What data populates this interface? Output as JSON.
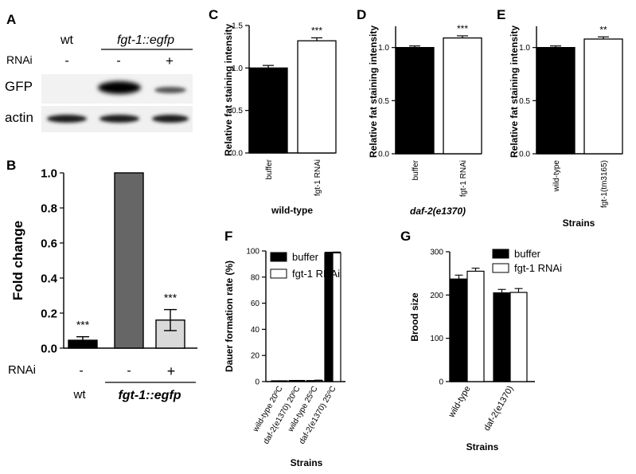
{
  "panel_letters": {
    "A": "A",
    "B": "B",
    "C": "C",
    "D": "D",
    "E": "E",
    "F": "F",
    "G": "G"
  },
  "blot": {
    "col_labels": [
      "wt",
      "fgt-1::egfp"
    ],
    "rnai_label": "RNAi",
    "rnai_marks": [
      "-",
      "-",
      "+"
    ],
    "row_labels": [
      "GFP",
      "actin"
    ]
  },
  "chart_data": [
    {
      "panel": "B",
      "type": "bar",
      "ylabel": "Fold change",
      "ylim": [
        0,
        1.0
      ],
      "yticks": [
        "0.0",
        "0.2",
        "0.4",
        "0.6",
        "0.8",
        "1.0"
      ],
      "values": [
        0.045,
        1.0,
        0.16
      ],
      "errors": [
        0.02,
        0,
        0.06
      ],
      "stars": [
        "***",
        "",
        "***"
      ],
      "colors": [
        "#000000",
        "#666666",
        "#d9d9d9"
      ],
      "rnai_label": "RNAi",
      "rnai_marks": [
        "-",
        "-",
        "+"
      ],
      "group_labels": [
        "wt",
        "fgt-1::egfp"
      ]
    },
    {
      "panel": "C",
      "type": "bar",
      "ylabel": "Relative fat staining intensity",
      "ylim": [
        0,
        1.5
      ],
      "yticks": [
        "0.0",
        "0.5",
        "1.0",
        "1.5"
      ],
      "categories": [
        "buffer",
        "fgt-1 RNAi"
      ],
      "values": [
        1.0,
        1.32
      ],
      "errors": [
        0.03,
        0.035
      ],
      "stars": [
        "",
        "***"
      ],
      "colors": [
        "#000000",
        "#ffffff"
      ],
      "xlabel": "wild-type"
    },
    {
      "panel": "D",
      "type": "bar",
      "ylabel": "Relative fat staining intensity",
      "ylim": [
        0,
        1.2
      ],
      "yticks": [
        "0.0",
        "0.5",
        "1.0"
      ],
      "categories": [
        "buffer",
        "fgt-1 RNAi"
      ],
      "values": [
        1.0,
        1.09
      ],
      "errors": [
        0.015,
        0.02
      ],
      "stars": [
        "",
        "***"
      ],
      "colors": [
        "#000000",
        "#ffffff"
      ],
      "xlabel": "daf-2(e1370)"
    },
    {
      "panel": "E",
      "type": "bar",
      "ylabel": "Relative fat staining intensity",
      "ylim": [
        0,
        1.2
      ],
      "yticks": [
        "0.0",
        "0.5",
        "1.0"
      ],
      "categories": [
        "wild-type",
        "fgt-1(tm3165)"
      ],
      "values": [
        1.0,
        1.08
      ],
      "errors": [
        0.015,
        0.02
      ],
      "stars": [
        "",
        "**"
      ],
      "colors": [
        "#000000",
        "#ffffff"
      ],
      "xlabel": "Strains"
    },
    {
      "panel": "F",
      "type": "bar",
      "ylabel": "Dauer formation rate (%)",
      "ylim": [
        0,
        100
      ],
      "yticks": [
        "0",
        "20",
        "40",
        "60",
        "80",
        "100"
      ],
      "categories": [
        "wild-type 20ºC",
        "daf-2(e1370) 20ºC",
        "wild-type 25ºC",
        "daf-2(e1370) 25ºC"
      ],
      "series": [
        {
          "name": "buffer",
          "values": [
            0.3,
            0.6,
            0.5,
            98.5
          ],
          "errors": [
            0.2,
            0.3,
            0.3,
            0.5
          ],
          "color": "#000000"
        },
        {
          "name": "fgt-1 RNAi",
          "values": [
            0.3,
            0.6,
            0.8,
            98.5
          ],
          "errors": [
            0.2,
            0.3,
            0.3,
            0.7
          ],
          "color": "#ffffff"
        }
      ],
      "xlabel": "Strains",
      "legend": "top-left"
    },
    {
      "panel": "G",
      "type": "bar",
      "ylabel": "Brood size",
      "ylim": [
        0,
        300
      ],
      "yticks": [
        "0",
        "100",
        "200",
        "300"
      ],
      "categories": [
        "wild-type",
        "daf-2(e1370)"
      ],
      "series": [
        {
          "name": "buffer",
          "values": [
            237,
            205
          ],
          "errors": [
            9,
            8
          ],
          "color": "#000000"
        },
        {
          "name": "fgt-1 RNAi",
          "values": [
            255,
            206
          ],
          "errors": [
            7,
            9
          ],
          "color": "#ffffff"
        }
      ],
      "xlabel": "Strains",
      "legend": "top-left"
    }
  ]
}
